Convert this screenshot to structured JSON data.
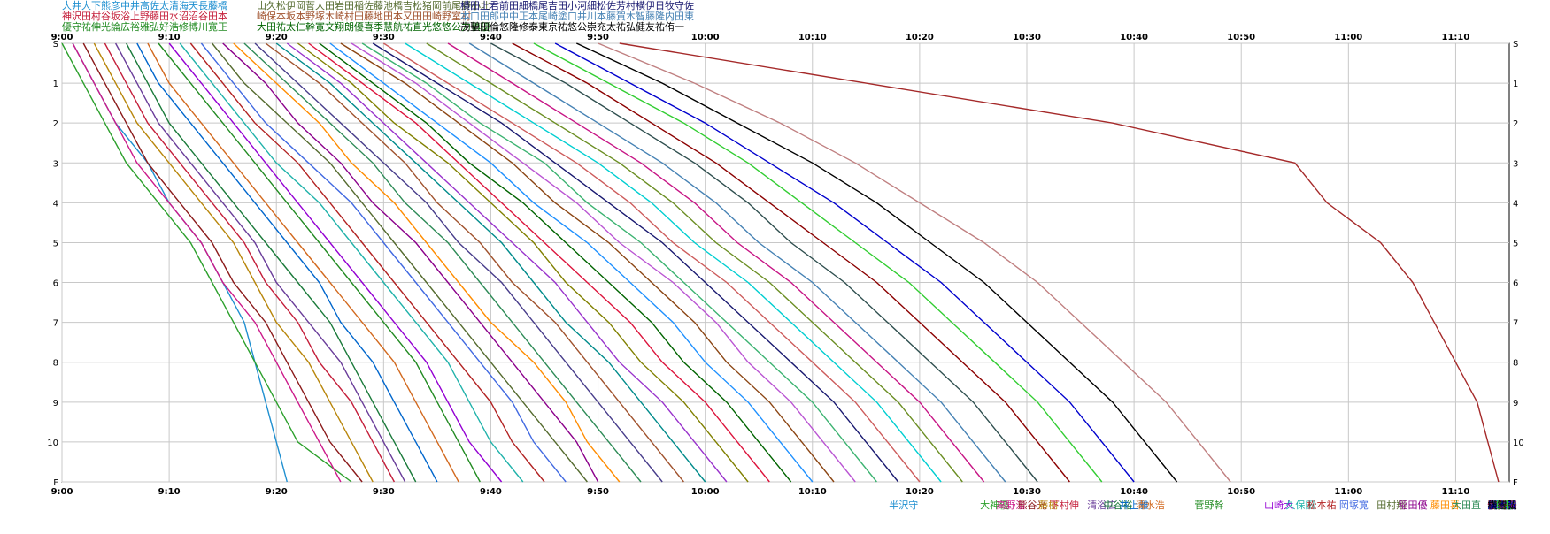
{
  "chart_data": {
    "type": "line",
    "title": "",
    "xlabel": "",
    "ylabel": "",
    "xlim": [
      "9:00",
      "11:15"
    ],
    "ylim": [
      "S",
      "F"
    ],
    "grid": true,
    "legend": "top",
    "x_ticks": [
      "9:00",
      "9:10",
      "9:20",
      "9:30",
      "9:40",
      "9:50",
      "10:00",
      "10:10",
      "10:20",
      "10:30",
      "10:40",
      "10:50",
      "11:00",
      "11:10"
    ],
    "y_ticks": [
      "S",
      "1",
      "2",
      "3",
      "4",
      "5",
      "6",
      "7",
      "8",
      "9",
      "10",
      "F"
    ],
    "header_rows": [
      "大井大下熊彦中井高佐太清海天長藤橋",
      "神沢田村谷坂浴上野藤田水沼沼谷田本",
      "優守祐伸光論広裕雅弘好浩修博川寛正",
      "山久松伊岡菅大田岩田稲佐藤池橋吉松猪岡前尾野小北",
      "崎保本坂本野塚木崎村田藤地田本又田田崎野室村",
      "大田祐太仁幹寛文翔朗優喜季慧航祐直光悠悠公力慎優",
      "横田上君前田細橋尾吉田小河細松佐芳村横伊日牧守佐",
      "本口田郎中中正本尾崎塗口井川本藤賀木智藤隆内田東",
      "茂聖田倫悠隆修泰東京祐悠公崇充太祐弘健友祐侑一"
    ],
    "finish_labels": [
      {
        "t": "10:18.5",
        "text": "半沢守"
      },
      {
        "t": "10:27.0",
        "text": "大神優"
      },
      {
        "t": "10:28.5",
        "text": "高野浩"
      },
      {
        "t": "10:30.5",
        "text": "熊谷光"
      },
      {
        "t": "10:32.0",
        "text": "藤樹"
      },
      {
        "t": "10:33.5",
        "text": "下村伸"
      },
      {
        "t": "10:37.0",
        "text": "清浴広"
      },
      {
        "t": "10:38.5",
        "text": "中谷裕"
      },
      {
        "t": "10:40.0",
        "text": "井上雅"
      },
      {
        "t": "10:41.5",
        "text": "清水浩"
      },
      {
        "t": "10:47.0",
        "text": "菅野幹"
      },
      {
        "t": "10:53.5",
        "text": "山崎大"
      },
      {
        "t": "10:55.5",
        "text": "久保田"
      },
      {
        "t": "10:57.5",
        "text": "松本祐"
      },
      {
        "t": "11:00.5",
        "text": "岡塚寛"
      },
      {
        "t": "11:04.0",
        "text": "田村翔"
      },
      {
        "t": "11:06.0",
        "text": "稲田優"
      },
      {
        "t": "11:09.0",
        "text": "藤田喜"
      },
      {
        "t": "11:11.0",
        "text": "大田直"
      },
      {
        "t": "11:15.5",
        "text": "猪又光"
      },
      {
        "t": "11:17.0",
        "text": "前田悠"
      },
      {
        "t": "11:19.0",
        "text": "小田慎"
      },
      {
        "t": "11:27.5",
        "text": "横田茂"
      },
      {
        "t": "11:29.0",
        "text": "上田聖"
      },
      {
        "t": "11:31.0",
        "text": "前田悠"
      },
      {
        "t": "11:32.5",
        "text": "北村優"
      },
      {
        "t": "11:38.5",
        "text": "猪田修"
      },
      {
        "t": "11:40.5",
        "text": "牧内祐"
      },
      {
        "t": "11:44.0",
        "text": "佐藤充"
      },
      {
        "t": "11:45.5",
        "text": "細田"
      },
      {
        "t": "11:48.0",
        "text": "日隈友"
      },
      {
        "t": "11:50.5",
        "text": "滝川真"
      },
      {
        "t": "11:52.0",
        "text": "谷田"
      },
      {
        "t": "11:54.0",
        "text": "松本直"
      },
      {
        "t": "11:58.5",
        "text": "伊田東"
      },
      {
        "t": "12:01.5",
        "text": "橘孝"
      },
      {
        "t": "12:04.5",
        "text": "山口雄"
      },
      {
        "t": "12:07.5",
        "text": "佐藤一"
      },
      {
        "t": "12:09.0",
        "text": "佐東"
      },
      {
        "t": "12:13.5",
        "text": "廣木幹"
      },
      {
        "t": "12:34.0",
        "text": "横智弘"
      }
    ],
    "series": [
      {
        "color": "#1f8fd0",
        "values": [
          "9:01",
          "9:03",
          "9:05",
          "9:08",
          "9:10",
          "9:13",
          "9:15",
          "9:17",
          "9:18",
          "9:19",
          "9:20",
          "9:21"
        ]
      },
      {
        "color": "#2ca02c",
        "values": [
          "9:00",
          "9:02",
          "9:04",
          "9:06",
          "9:09",
          "9:12",
          "9:14",
          "9:16",
          "9:18",
          "9:20",
          "9:22",
          "9:27"
        ]
      },
      {
        "color": "#cc1a8a",
        "values": [
          "9:01",
          "9:03",
          "9:05",
          "9:07",
          "9:10",
          "9:13",
          "9:15",
          "9:18",
          "9:20",
          "9:22",
          "9:24",
          "9:26"
        ]
      },
      {
        "color": "#8b1a1a",
        "values": [
          "9:02",
          "9:04",
          "9:06",
          "9:08",
          "9:11",
          "9:14",
          "9:16",
          "9:19",
          "9:21",
          "9:23",
          "9:25",
          "9:28"
        ]
      },
      {
        "color": "#b8860b",
        "values": [
          "9:03",
          "9:05",
          "9:07",
          "9:10",
          "9:13",
          "9:16",
          "9:18",
          "9:20",
          "9:23",
          "9:25",
          "9:27",
          "9:29"
        ]
      },
      {
        "color": "#c41e3a",
        "values": [
          "9:04",
          "9:06",
          "9:08",
          "9:11",
          "9:14",
          "9:17",
          "9:19",
          "9:22",
          "9:24",
          "9:27",
          "9:29",
          "9:31"
        ]
      },
      {
        "color": "#6a3d9a",
        "values": [
          "9:05",
          "9:07",
          "9:09",
          "9:12",
          "9:15",
          "9:18",
          "9:20",
          "9:23",
          "9:26",
          "9:28",
          "9:30",
          "9:32"
        ]
      },
      {
        "color": "#1a7a3a",
        "values": [
          "9:06",
          "9:08",
          "9:10",
          "9:13",
          "9:16",
          "9:19",
          "9:22",
          "9:25",
          "9:27",
          "9:29",
          "9:31",
          "9:33"
        ]
      },
      {
        "color": "#0066cc",
        "values": [
          "9:07",
          "9:09",
          "9:12",
          "9:15",
          "9:18",
          "9:21",
          "9:24",
          "9:26",
          "9:29",
          "9:31",
          "9:33",
          "9:35"
        ]
      },
      {
        "color": "#d2691e",
        "values": [
          "9:08",
          "9:10",
          "9:13",
          "9:16",
          "9:19",
          "9:22",
          "9:25",
          "9:28",
          "9:31",
          "9:33",
          "9:35",
          "9:37"
        ]
      },
      {
        "color": "#228b22",
        "values": [
          "9:09",
          "9:12",
          "9:15",
          "9:18",
          "9:21",
          "9:24",
          "9:27",
          "9:30",
          "9:33",
          "9:35",
          "9:37",
          "9:39"
        ]
      },
      {
        "color": "#9400d3",
        "values": [
          "9:10",
          "9:13",
          "9:16",
          "9:19",
          "9:22",
          "9:25",
          "9:28",
          "9:31",
          "9:34",
          "9:36",
          "9:38",
          "9:41"
        ]
      },
      {
        "color": "#20b2aa",
        "values": [
          "9:11",
          "9:14",
          "9:17",
          "9:20",
          "9:24",
          "9:27",
          "9:30",
          "9:33",
          "9:36",
          "9:38",
          "9:40",
          "9:43"
        ]
      },
      {
        "color": "#b22222",
        "values": [
          "9:12",
          "9:15",
          "9:18",
          "9:22",
          "9:25",
          "9:28",
          "9:31",
          "9:34",
          "9:37",
          "9:40",
          "9:42",
          "9:45"
        ]
      },
      {
        "color": "#4169e1",
        "values": [
          "9:13",
          "9:16",
          "9:19",
          "9:23",
          "9:27",
          "9:30",
          "9:33",
          "9:36",
          "9:39",
          "9:42",
          "9:44",
          "9:47"
        ]
      },
      {
        "color": "#556b2f",
        "values": [
          "9:14",
          "9:17",
          "9:21",
          "9:25",
          "9:28",
          "9:31",
          "9:34",
          "9:37",
          "9:40",
          "9:43",
          "9:46",
          "9:49"
        ]
      },
      {
        "color": "#8b008b",
        "values": [
          "9:15",
          "9:19",
          "9:22",
          "9:26",
          "9:29",
          "9:33",
          "9:36",
          "9:39",
          "9:42",
          "9:45",
          "9:48",
          "9:50"
        ]
      },
      {
        "color": "#ff8c00",
        "values": [
          "9:16",
          "9:20",
          "9:24",
          "9:27",
          "9:31",
          "9:34",
          "9:37",
          "9:40",
          "9:44",
          "9:47",
          "9:49",
          "9:52"
        ]
      },
      {
        "color": "#2e8b57",
        "values": [
          "9:17",
          "9:21",
          "9:25",
          "9:29",
          "9:32",
          "9:36",
          "9:39",
          "9:42",
          "9:45",
          "9:48",
          "9:51",
          "9:54"
        ]
      },
      {
        "color": "#483d8b",
        "values": [
          "9:18",
          "9:22",
          "9:26",
          "9:30",
          "9:34",
          "9:37",
          "9:41",
          "9:44",
          "9:47",
          "9:50",
          "9:53",
          "9:56"
        ]
      },
      {
        "color": "#a0522d",
        "values": [
          "9:19",
          "9:24",
          "9:28",
          "9:32",
          "9:35",
          "9:39",
          "9:42",
          "9:46",
          "9:49",
          "9:52",
          "9:55",
          "9:58"
        ]
      },
      {
        "color": "#008b8b",
        "values": [
          "9:20",
          "9:25",
          "9:29",
          "9:33",
          "9:37",
          "9:41",
          "9:44",
          "9:47",
          "9:51",
          "9:54",
          "9:57",
          "10:00"
        ]
      },
      {
        "color": "#9932cc",
        "values": [
          "9:21",
          "9:26",
          "9:30",
          "9:34",
          "9:38",
          "9:42",
          "9:46",
          "9:49",
          "9:52",
          "9:56",
          "9:59",
          "10:02"
        ]
      },
      {
        "color": "#808000",
        "values": [
          "9:22",
          "9:27",
          "9:31",
          "9:36",
          "9:40",
          "9:44",
          "9:47",
          "9:51",
          "9:54",
          "9:58",
          "10:01",
          "10:04"
        ]
      },
      {
        "color": "#dc143c",
        "values": [
          "9:23",
          "9:28",
          "9:33",
          "9:37",
          "9:41",
          "9:45",
          "9:49",
          "9:53",
          "9:56",
          "10:00",
          "10:03",
          "10:06"
        ]
      },
      {
        "color": "#006400",
        "values": [
          "9:24",
          "9:29",
          "9:34",
          "9:38",
          "9:43",
          "9:47",
          "9:51",
          "9:55",
          "9:58",
          "10:02",
          "10:05",
          "10:08"
        ]
      },
      {
        "color": "#1e90ff",
        "values": [
          "9:25",
          "9:30",
          "9:35",
          "9:40",
          "9:44",
          "9:49",
          "9:53",
          "9:57",
          "10:00",
          "10:04",
          "10:07",
          "10:10"
        ]
      },
      {
        "color": "#8b4513",
        "values": [
          "9:26",
          "9:32",
          "9:37",
          "9:42",
          "9:46",
          "9:51",
          "9:55",
          "9:59",
          "10:02",
          "10:06",
          "10:09",
          "10:12"
        ]
      },
      {
        "color": "#ba55d3",
        "values": [
          "9:27",
          "9:33",
          "9:38",
          "9:43",
          "9:48",
          "9:52",
          "9:57",
          "10:01",
          "10:04",
          "10:08",
          "10:11",
          "10:14"
        ]
      },
      {
        "color": "#3cb371",
        "values": [
          "9:28",
          "9:34",
          "9:39",
          "9:45",
          "9:49",
          "9:54",
          "9:58",
          "10:02",
          "10:06",
          "10:10",
          "10:13",
          "10:16"
        ]
      },
      {
        "color": "#191970",
        "values": [
          "9:29",
          "9:35",
          "9:41",
          "9:46",
          "9:51",
          "9:56",
          "10:00",
          "10:04",
          "10:08",
          "10:12",
          "10:15",
          "10:18"
        ]
      },
      {
        "color": "#cd5c5c",
        "values": [
          "9:30",
          "9:36",
          "9:42",
          "9:48",
          "9:53",
          "9:57",
          "10:02",
          "10:06",
          "10:10",
          "10:14",
          "10:17",
          "10:20"
        ]
      },
      {
        "color": "#00ced1",
        "values": [
          "9:32",
          "9:38",
          "9:44",
          "9:50",
          "9:55",
          "9:59",
          "10:04",
          "10:08",
          "10:12",
          "10:16",
          "10:19",
          "10:22"
        ]
      },
      {
        "color": "#6b8e23",
        "values": [
          "9:34",
          "9:40",
          "9:46",
          "9:52",
          "9:57",
          "10:01",
          "10:06",
          "10:10",
          "10:14",
          "10:18",
          "10:21",
          "10:24"
        ]
      },
      {
        "color": "#c71585",
        "values": [
          "9:36",
          "9:42",
          "9:48",
          "9:54",
          "9:59",
          "10:03",
          "10:08",
          "10:12",
          "10:16",
          "10:20",
          "10:23",
          "10:26"
        ]
      },
      {
        "color": "#4682b4",
        "values": [
          "9:38",
          "9:44",
          "9:50",
          "9:56",
          "10:01",
          "10:05",
          "10:10",
          "10:14",
          "10:18",
          "10:22",
          "10:25",
          "10:28"
        ]
      },
      {
        "color": "#2f4f4f",
        "values": [
          "9:40",
          "9:47",
          "9:53",
          "9:59",
          "10:04",
          "10:08",
          "10:13",
          "10:17",
          "10:21",
          "10:25",
          "10:28",
          "10:31"
        ]
      },
      {
        "color": "#8b0000",
        "values": [
          "9:42",
          "9:49",
          "9:55",
          "10:01",
          "10:06",
          "10:11",
          "10:16",
          "10:20",
          "10:24",
          "10:28",
          "10:31",
          "10:34"
        ]
      },
      {
        "color": "#32cd32",
        "values": [
          "9:44",
          "9:51",
          "9:58",
          "10:04",
          "10:09",
          "10:14",
          "10:19",
          "10:23",
          "10:27",
          "10:31",
          "10:34",
          "10:37"
        ]
      },
      {
        "color": "#0000cd",
        "values": [
          "9:46",
          "9:53",
          "10:00",
          "10:06",
          "10:12",
          "10:17",
          "10:22",
          "10:26",
          "10:30",
          "10:34",
          "10:37",
          "10:40"
        ]
      },
      {
        "color": "#000000",
        "values": [
          "9:48",
          "9:56",
          "10:03",
          "10:10",
          "10:16",
          "10:21",
          "10:26",
          "10:30",
          "10:34",
          "10:38",
          "10:41",
          "10:44"
        ]
      },
      {
        "color": "#c08081",
        "values": [
          "9:50",
          "9:59",
          "10:07",
          "10:14",
          "10:20",
          "10:26",
          "10:31",
          "10:35",
          "10:39",
          "10:43",
          "10:46",
          "10:49"
        ]
      },
      {
        "color": "#a52a2a",
        "values": [
          "9:52",
          "10:15",
          "10:38",
          "10:55",
          "10:58",
          "11:03",
          "11:06",
          "11:08",
          "11:10",
          "11:12",
          "11:13",
          "11:14"
        ]
      }
    ]
  }
}
